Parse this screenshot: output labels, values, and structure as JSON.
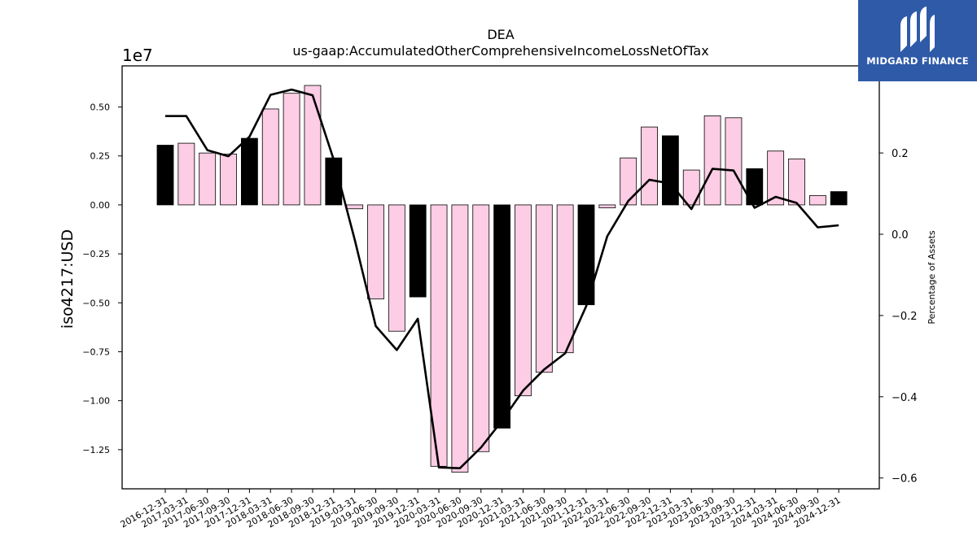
{
  "logo": {
    "text": "MIDGARD FINANCE",
    "bg_color": "#2f5aa8"
  },
  "chart_data": {
    "type": "bar",
    "title": "DEA",
    "subtitle": "us-gaap:AccumulatedOtherComprehensiveIncomeLossNetOfTax",
    "ylabel": "iso4217:USD",
    "y2label": "Percentage of Assets",
    "offset_text": "1e7",
    "ylim": [
      -14500000.0,
      7100000.0
    ],
    "y2lim": [
      -0.6266,
      0.4144
    ],
    "yticks": [
      {
        "value": 5000000.0,
        "label": "0.50"
      },
      {
        "value": 2500000.0,
        "label": "0.25"
      },
      {
        "value": 0,
        "label": "0.00"
      },
      {
        "value": -2500000.0,
        "label": "−0.25"
      },
      {
        "value": -5000000.0,
        "label": "−0.50"
      },
      {
        "value": -7500000.0,
        "label": "−0.75"
      },
      {
        "value": -10000000.0,
        "label": "−1.00"
      },
      {
        "value": -12500000.0,
        "label": "−1.25"
      }
    ],
    "y2ticks": [
      {
        "value": 0.2,
        "label": "0.2"
      },
      {
        "value": 0.0,
        "label": "0.0"
      },
      {
        "value": -0.2,
        "label": "−0.2"
      },
      {
        "value": -0.4,
        "label": "−0.4"
      },
      {
        "value": -0.6,
        "label": "−0.6"
      }
    ],
    "categories": [
      "2016-12-31",
      "2017-03-31",
      "2017-06-30",
      "2017-09-30",
      "2017-12-31",
      "2018-03-31",
      "2018-06-30",
      "2018-09-30",
      "2018-12-31",
      "2019-03-31",
      "2019-06-30",
      "2019-09-30",
      "2019-12-31",
      "2020-03-31",
      "2020-06-30",
      "2020-09-30",
      "2020-12-31",
      "2021-03-31",
      "2021-06-30",
      "2021-09-30",
      "2021-12-31",
      "2022-03-31",
      "2022-06-30",
      "2022-09-30",
      "2022-12-31",
      "2023-03-31",
      "2023-06-30",
      "2023-09-30",
      "2023-12-31",
      "2024-03-31",
      "2024-06-30",
      "2024-09-30",
      "2024-12-31"
    ],
    "series": [
      {
        "type": "bar",
        "values": [
          3050000,
          3150000,
          2650000,
          2600000,
          3400000,
          4900000,
          5700000,
          6100000,
          2400000,
          -200000,
          -4800000,
          -6450000,
          -4700000,
          -13350000,
          -13650000,
          -12600000,
          -11400000,
          -9750000,
          -8550000,
          -7550000,
          -5100000,
          -150000,
          2400000,
          3980000,
          3530000,
          1780000,
          4550000,
          4450000,
          1850000,
          2750000,
          2350000,
          480000,
          680000
        ],
        "annual": [
          true,
          false,
          false,
          false,
          true,
          false,
          false,
          false,
          true,
          false,
          false,
          false,
          true,
          false,
          false,
          false,
          true,
          false,
          false,
          false,
          true,
          false,
          false,
          false,
          true,
          false,
          false,
          false,
          true,
          false,
          false,
          false,
          true
        ],
        "colors": {
          "annual": "#000000",
          "quarterly": "#fccde4",
          "edge": "#000000"
        }
      },
      {
        "type": "line",
        "axis": "right",
        "values": [
          0.291,
          0.291,
          0.207,
          0.192,
          0.24,
          0.343,
          0.356,
          0.342,
          0.184,
          -0.013,
          -0.226,
          -0.285,
          -0.208,
          -0.574,
          -0.576,
          -0.525,
          -0.459,
          -0.385,
          -0.333,
          -0.293,
          -0.177,
          -0.005,
          0.082,
          0.134,
          0.125,
          0.062,
          0.161,
          0.157,
          0.065,
          0.092,
          0.077,
          0.017,
          0.022
        ],
        "color": "#000000"
      }
    ]
  }
}
